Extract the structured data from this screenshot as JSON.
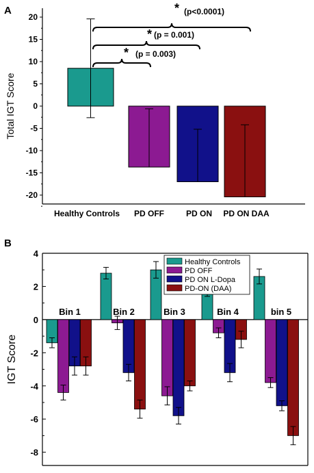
{
  "colors": {
    "teal": "#1a9a8e",
    "purple": "#8c1a92",
    "navy": "#11118a",
    "darkred": "#8a1010"
  },
  "chart_data": [
    {
      "panel": "A",
      "type": "bar",
      "ylabel": "Total IGT Score",
      "ylim": [
        -22,
        22
      ],
      "yticks": [
        -20,
        -15,
        -10,
        -5,
        0,
        5,
        10,
        15,
        20
      ],
      "categories": [
        "Healthy Controls",
        "PD OFF",
        "PD ON",
        "PD ON DAA"
      ],
      "values": [
        8.5,
        -13.7,
        -17,
        -20.4
      ],
      "error_top": [
        19.6,
        -0.6,
        -5.2,
        -4.2
      ],
      "error_bottom": [
        -2.6,
        null,
        null,
        null
      ],
      "annotations": [
        {
          "star": "*",
          "text": "(p<0.0001)"
        },
        {
          "star": "*",
          "text": "(p = 0.001)"
        },
        {
          "star": "*",
          "text": "(p = 0.003)"
        }
      ]
    },
    {
      "panel": "B",
      "type": "bar",
      "ylabel": "IGT Score",
      "ylim": [
        -8.8,
        4
      ],
      "yticks": [
        -8,
        -6,
        -4,
        -2,
        0,
        2,
        4
      ],
      "categories": [
        "Bin 1",
        "Bin 2",
        "Bin 3",
        "Bin 4",
        "bin 5"
      ],
      "series": [
        {
          "name": "Healthy Controls",
          "values": [
            -1.4,
            2.8,
            3.0,
            1.6,
            2.6
          ],
          "errors": [
            0.3,
            0.35,
            0.5,
            0.2,
            0.45
          ]
        },
        {
          "name": "PD OFF",
          "values": [
            -4.4,
            -0.2,
            -4.6,
            -0.8,
            -3.8
          ],
          "errors": [
            0.45,
            0.4,
            0.55,
            0.3,
            0.3
          ]
        },
        {
          "name": "PD ON L-Dopa",
          "values": [
            -2.8,
            -3.2,
            -5.8,
            -3.2,
            -5.2
          ],
          "errors": [
            0.55,
            0.5,
            0.5,
            0.55,
            0.3
          ]
        },
        {
          "name": "PD-ON (DAA)",
          "values": [
            -2.8,
            -5.4,
            -4.0,
            -1.2,
            -7.0
          ],
          "errors": [
            0.55,
            0.55,
            0.3,
            0.5,
            0.55
          ]
        }
      ],
      "legend_position": "top-right"
    }
  ]
}
